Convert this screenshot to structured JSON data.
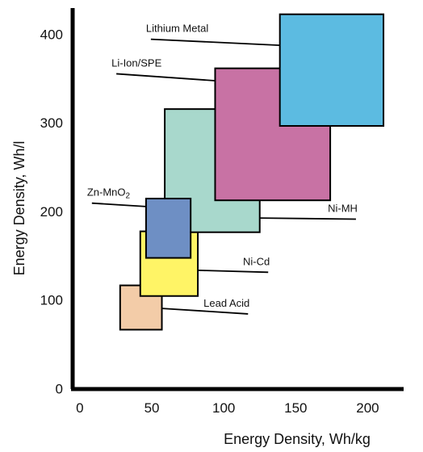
{
  "chart_data": {
    "type": "range-box",
    "xlabel": "Energy Density, Wh/kg",
    "ylabel": "Energy Density, Wh/l",
    "xlim": [
      -5,
      225
    ],
    "ylim": [
      0,
      430
    ],
    "x_ticks": [
      0,
      50,
      100,
      150,
      200
    ],
    "y_ticks": [
      0,
      100,
      200,
      300,
      400
    ],
    "grid": false,
    "legend": "none",
    "regions": [
      {
        "name": "Lead Acid",
        "label": "Lead Acid",
        "x": [
          28,
          57
        ],
        "y": [
          67,
          117
        ],
        "color": "#f3cca8",
        "label_at": [
          118,
          93
        ],
        "leader_end": [
          57,
          91
        ]
      },
      {
        "name": "Ni-Cd",
        "label": "Ni-Cd",
        "x": [
          42,
          82
        ],
        "y": [
          105,
          178
        ],
        "color": "#fff466",
        "label_at": [
          132,
          140
        ],
        "leader_end": [
          82,
          134
        ]
      },
      {
        "name": "Ni-MH",
        "label": "Ni-MH",
        "x": [
          59,
          125
        ],
        "y": [
          177,
          316
        ],
        "color": "#a8d8cc",
        "label_at": [
          193,
          200
        ],
        "leader_end": [
          125,
          193
        ]
      },
      {
        "name": "Zn-MnO2",
        "label": "Zn-MnO",
        "label_sub": "2",
        "x": [
          46,
          77
        ],
        "y": [
          148,
          215
        ],
        "color": "#6e8fc4",
        "label_at": [
          5,
          218
        ],
        "leader_end": [
          46,
          206
        ]
      },
      {
        "name": "Li-Ion/SPE",
        "label": "Li-Ion/SPE",
        "x": [
          94,
          174
        ],
        "y": [
          213,
          362
        ],
        "color": "#c872a4",
        "label_at": [
          22,
          364
        ],
        "leader_end": [
          94,
          348
        ]
      },
      {
        "name": "Lithium Metal",
        "label": "Lithium Metal",
        "x": [
          139,
          211
        ],
        "y": [
          297,
          423
        ],
        "color": "#5cbbe1",
        "label_at": [
          46,
          403
        ],
        "leader_end": [
          139,
          388
        ]
      }
    ]
  }
}
